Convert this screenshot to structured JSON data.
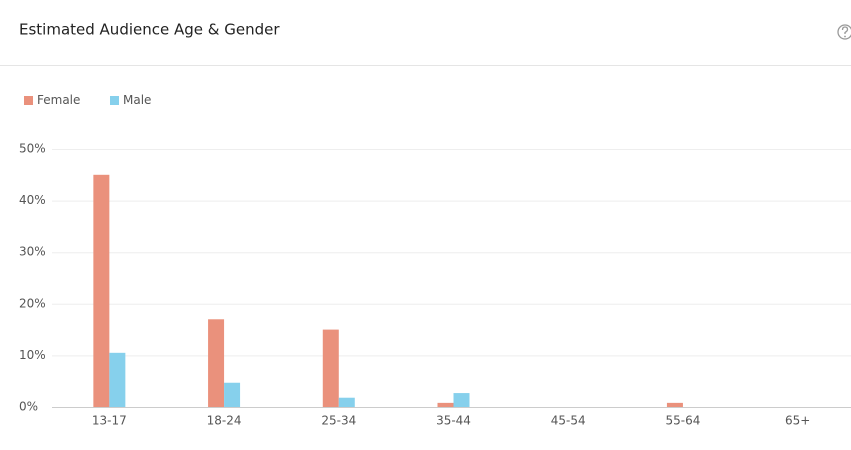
{
  "chart_data": {
    "type": "bar",
    "title": "Estimated Audience Age & Gender",
    "categories": [
      "13-17",
      "18-24",
      "25-34",
      "35-44",
      "45-54",
      "55-64",
      "65+"
    ],
    "series": [
      {
        "name": "Female",
        "color": "#ea917c",
        "values": [
          45,
          17,
          15,
          0.8,
          0,
          0.8,
          0
        ]
      },
      {
        "name": "Male",
        "color": "#86d0ec",
        "values": [
          10.5,
          4.7,
          1.8,
          2.7,
          0,
          0,
          0
        ]
      }
    ],
    "ylim": [
      0,
      50
    ],
    "yticks": [
      {
        "value": 0,
        "label": "0%"
      },
      {
        "value": 10,
        "label": "10%"
      },
      {
        "value": 20,
        "label": "20%"
      },
      {
        "value": 30,
        "label": "30%"
      },
      {
        "value": 40,
        "label": "40%"
      },
      {
        "value": 50,
        "label": "50%"
      }
    ],
    "grid": true,
    "legend": "top-left"
  }
}
